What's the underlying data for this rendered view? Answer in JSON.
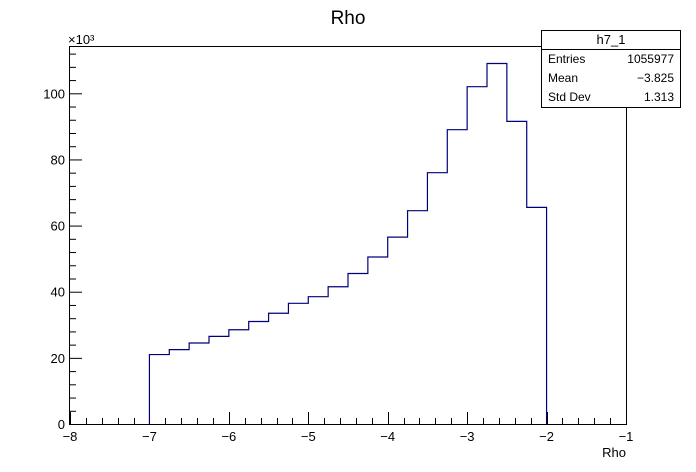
{
  "chart_data": {
    "type": "bar",
    "title": "Rho",
    "xlabel": "Rho",
    "ylabel": "",
    "y_multiplier": "×10³",
    "xlim": [
      -8,
      -1
    ],
    "ylim": [
      0,
      114
    ],
    "x_ticks": [
      -8,
      -7,
      -6,
      -5,
      -4,
      -3,
      -2,
      -1
    ],
    "y_ticks": [
      0,
      20,
      40,
      60,
      80,
      100
    ],
    "bin_edges": [
      -7.0,
      -6.75,
      -6.5,
      -6.25,
      -6.0,
      -5.75,
      -5.5,
      -5.25,
      -5.0,
      -4.75,
      -4.5,
      -4.25,
      -4.0,
      -3.75,
      -3.5,
      -3.25,
      -3.0,
      -2.75,
      -2.5,
      -2.25,
      -2.0
    ],
    "values": [
      21,
      22.5,
      24.5,
      26.5,
      28.5,
      31,
      33.5,
      36.5,
      38.5,
      41.5,
      45.5,
      50.5,
      56.5,
      64.5,
      76,
      89,
      102,
      109,
      91.5,
      65.5
    ],
    "line_color": "#00007f",
    "grid": false,
    "legend": "none"
  },
  "stats_box": {
    "name": "h7_1",
    "entries_label": "Entries",
    "entries_value": "1055977",
    "mean_label": "Mean",
    "mean_value": "−3.825",
    "stddev_label": "Std Dev",
    "stddev_value": "1.313"
  }
}
